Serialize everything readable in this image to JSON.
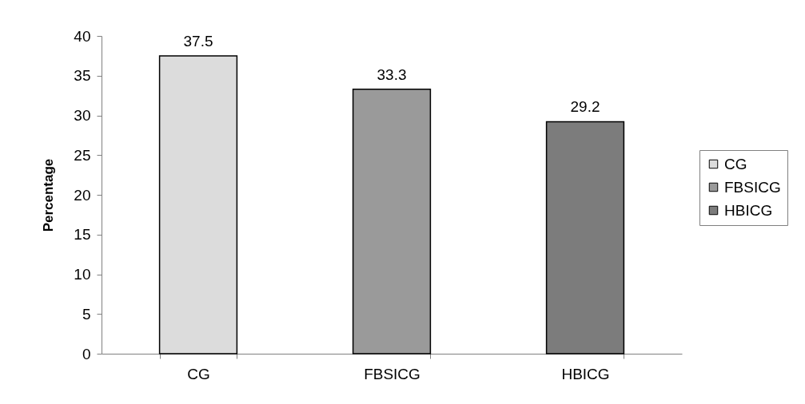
{
  "chart_data": {
    "type": "bar",
    "ylabel": "Percentage",
    "categories": [
      "CG",
      "FBSICG",
      "HBICG"
    ],
    "stacked": true,
    "series": [
      {
        "name": "CG",
        "color": "#dcdcdc",
        "values": [
          37.5,
          null,
          null
        ]
      },
      {
        "name": "FBSICG",
        "color": "#9a9a9a",
        "values": [
          null,
          33.3,
          null
        ]
      },
      {
        "name": "HBICG",
        "color": "#7c7c7c",
        "values": [
          null,
          null,
          29.2
        ]
      }
    ],
    "ylim": [
      0,
      40
    ],
    "yticks": [
      0,
      5,
      10,
      15,
      20,
      25,
      30,
      35,
      40
    ],
    "data_labels": true,
    "legend": "right",
    "grid": false
  }
}
